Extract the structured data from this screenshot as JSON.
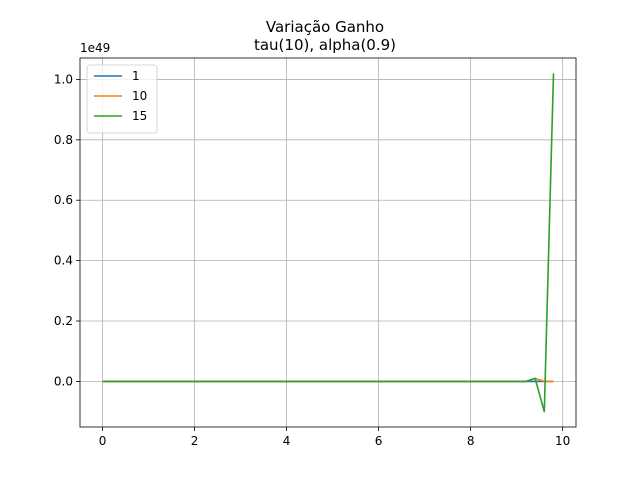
{
  "chart_data": {
    "type": "line",
    "title": "Variação Ganho",
    "subtitle": "tau(10), alpha(0.9)",
    "xlabel": "",
    "ylabel": "",
    "y_offset_label": "1e49",
    "xlim": [
      -0.49,
      10.29
    ],
    "ylim": [
      -0.151,
      1.071
    ],
    "xticks": [
      0,
      2,
      4,
      6,
      8,
      10
    ],
    "xtick_labels": [
      "0",
      "2",
      "4",
      "6",
      "8",
      "10"
    ],
    "yticks": [
      0.0,
      0.2,
      0.4,
      0.6,
      0.8,
      1.0
    ],
    "ytick_labels": [
      "0.0",
      "0.2",
      "0.4",
      "0.6",
      "0.8",
      "1.0"
    ],
    "grid": true,
    "legend_position": "top-left",
    "series": [
      {
        "name": "1",
        "color": "#1f77b4",
        "x": [
          0,
          9.8
        ],
        "y": [
          0,
          0
        ]
      },
      {
        "name": "10",
        "color": "#ff7f0e",
        "x": [
          0,
          9.2,
          9.4,
          9.6,
          9.8
        ],
        "y": [
          0,
          0,
          0.01,
          0,
          0
        ]
      },
      {
        "name": "15",
        "color": "#2ca02c",
        "x": [
          0,
          9.2,
          9.4,
          9.6,
          9.8
        ],
        "y": [
          0,
          0,
          0.01,
          -0.1,
          1.02
        ]
      }
    ]
  }
}
